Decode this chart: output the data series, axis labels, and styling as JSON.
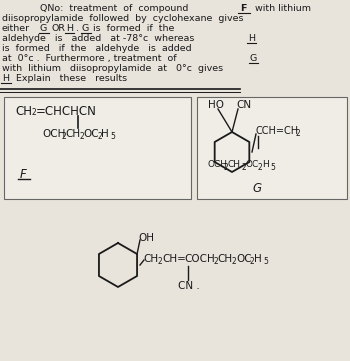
{
  "bg_color": "#cdc9c0",
  "paper_color": "#e8e4dc",
  "text_color": "#1a1a1a",
  "line_color": "#111111",
  "fs_text": 6.8,
  "fs_chem": 8.5,
  "fs_sub": 5.5,
  "text_lines": [
    [
      48,
      4,
      "QNo:  treatment  of  compound"
    ],
    [
      2,
      14,
      "diisopropylamide  followed  by  cyclohexane  gives"
    ],
    [
      2,
      24,
      "either"
    ],
    [
      2,
      34,
      "aldehyde    is    added    at -78°c   whereas"
    ],
    [
      2,
      44,
      "is  formed    if  the    aldehyde   is  added"
    ],
    [
      2,
      54,
      "at  0°c .  Furthermore , treatment  of"
    ],
    [
      2,
      64,
      "with  lithium   diisopropylamide  at   0°c  gives"
    ],
    [
      2,
      74,
      "H      Explain   these   results"
    ]
  ]
}
